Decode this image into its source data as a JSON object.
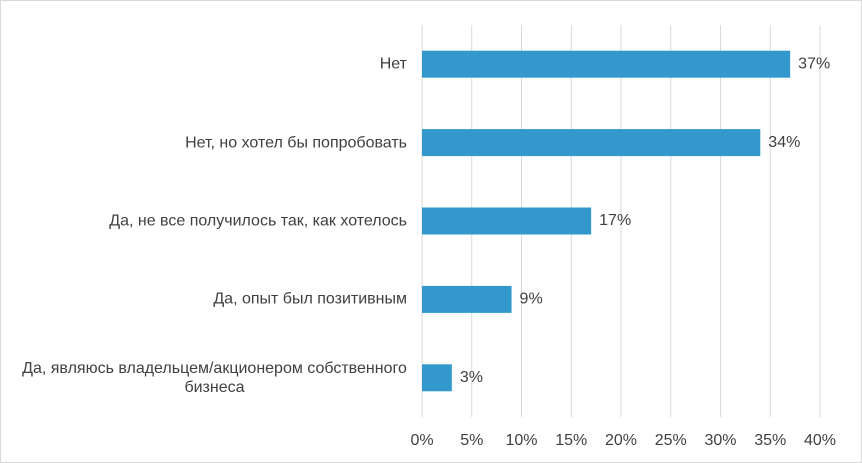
{
  "chart_data": {
    "type": "bar",
    "orientation": "horizontal",
    "categories": [
      "Нет",
      "Нет, но хотел бы попробовать",
      "Да, не все получилось так, как хотелось",
      "Да, опыт был позитивным",
      "Да, являюсь владельцем/акционером собственного бизнеса"
    ],
    "values": [
      37,
      34,
      17,
      9,
      3
    ],
    "value_labels": [
      "37%",
      "34%",
      "17%",
      "9%",
      "3%"
    ],
    "color": "#3399cc",
    "xlim": [
      0,
      40
    ],
    "xticks": [
      {
        "value": 0,
        "label": "0%"
      },
      {
        "value": 5,
        "label": "5%"
      },
      {
        "value": 10,
        "label": "10%"
      },
      {
        "value": 15,
        "label": "15%"
      },
      {
        "value": 20,
        "label": "20%"
      },
      {
        "value": 25,
        "label": "25%"
      },
      {
        "value": 30,
        "label": "30%"
      },
      {
        "value": 35,
        "label": "35%"
      },
      {
        "value": 40,
        "label": "40%"
      }
    ],
    "grid": true
  }
}
